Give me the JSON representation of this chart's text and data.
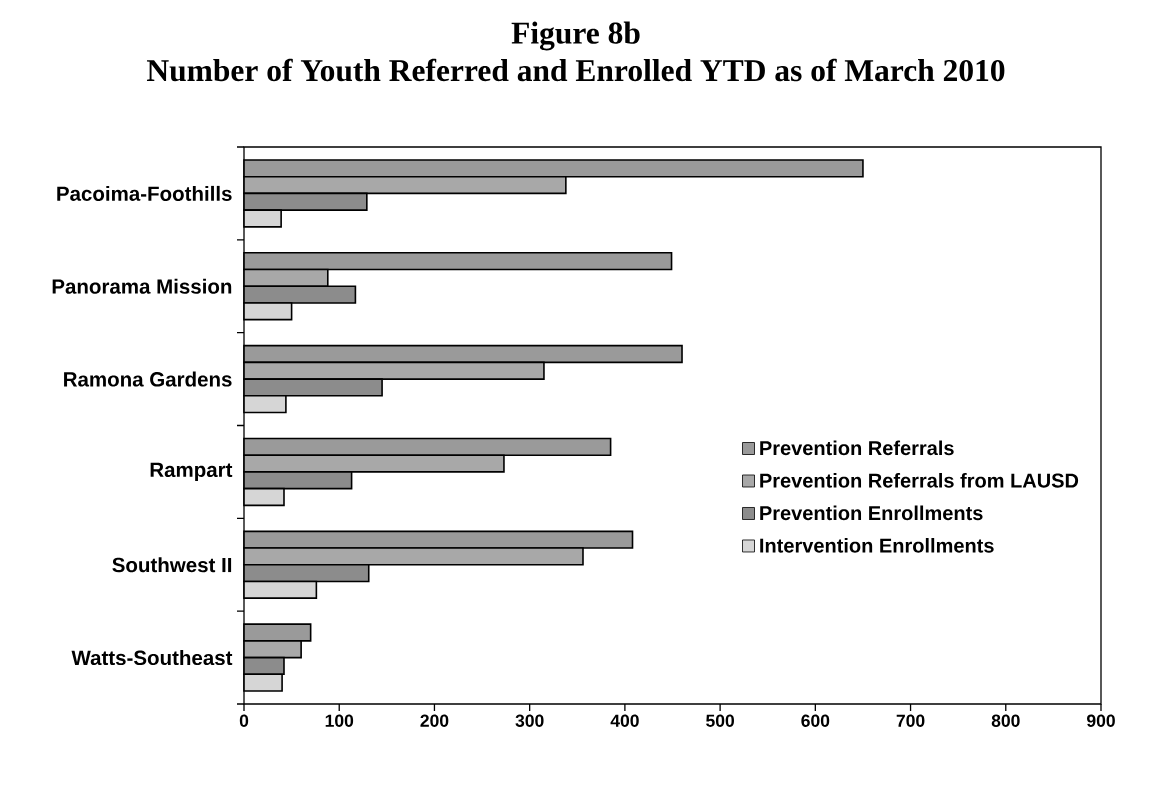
{
  "chart_data": {
    "type": "bar",
    "orientation": "horizontal",
    "title": "Figure 8b",
    "subtitle": "Number of Youth Referred and Enrolled YTD as of March 2010",
    "categories": [
      "Pacoima-Foothills",
      "Panorama Mission",
      "Ramona Gardens",
      "Rampart",
      "Southwest II",
      "Watts-Southeast"
    ],
    "series": [
      {
        "name": "Prevention Referrals",
        "color": "#9a9a9a",
        "values": [
          650,
          449,
          460,
          385,
          408,
          70
        ]
      },
      {
        "name": "Prevention Referrals from LAUSD",
        "color": "#a8a8a8",
        "values": [
          338,
          88,
          315,
          273,
          356,
          60
        ]
      },
      {
        "name": "Prevention Enrollments",
        "color": "#8c8c8c",
        "values": [
          129,
          117,
          145,
          113,
          131,
          42
        ]
      },
      {
        "name": "Intervention Enrollments",
        "color": "#d6d6d6",
        "values": [
          39,
          50,
          44,
          42,
          76,
          40
        ]
      }
    ],
    "xlim": [
      0,
      900
    ],
    "xticks": [
      0,
      100,
      200,
      300,
      400,
      500,
      600,
      700,
      800,
      900
    ],
    "legend": "right"
  }
}
